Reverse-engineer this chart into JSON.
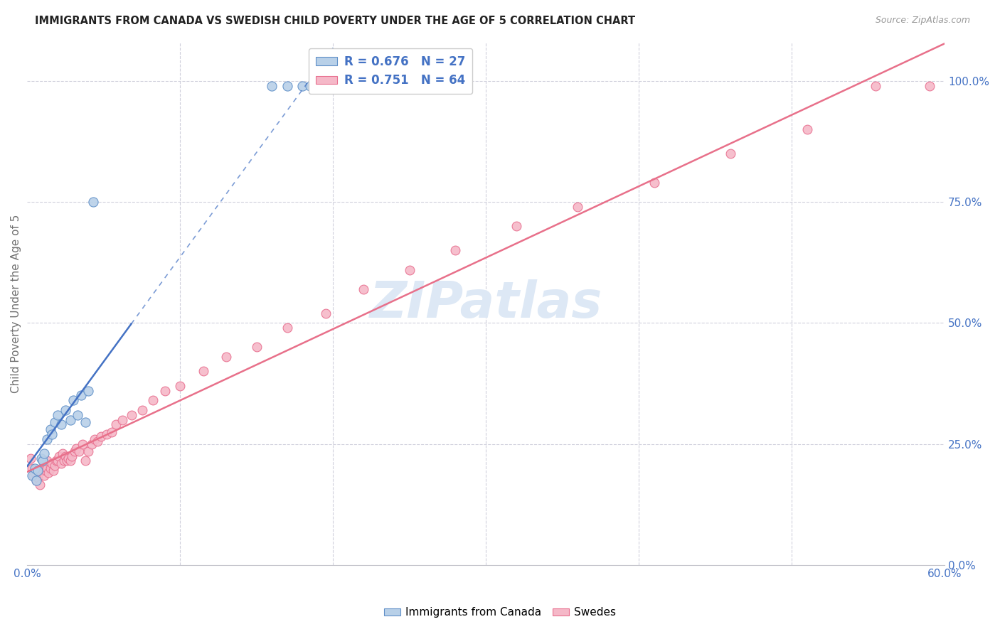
{
  "title": "IMMIGRANTS FROM CANADA VS SWEDISH CHILD POVERTY UNDER THE AGE OF 5 CORRELATION CHART",
  "source": "Source: ZipAtlas.com",
  "ylabel": "Child Poverty Under the Age of 5",
  "xlim": [
    0.0,
    0.6
  ],
  "ylim": [
    0.0,
    1.08
  ],
  "x_tick_positions": [
    0.0,
    0.1,
    0.2,
    0.3,
    0.4,
    0.5,
    0.6
  ],
  "x_tick_labels": [
    "0.0%",
    "",
    "",
    "",
    "",
    "",
    "60.0%"
  ],
  "y_tick_values_right": [
    0.0,
    0.25,
    0.5,
    0.75,
    1.0
  ],
  "y_tick_labels_right": [
    "0.0%",
    "25.0%",
    "50.0%",
    "75.0%",
    "100.0%"
  ],
  "legend_entries": [
    "R = 0.676   N = 27",
    "R = 0.751   N = 64"
  ],
  "legend_labels_bottom": [
    "Immigrants from Canada",
    "Swedes"
  ],
  "color_canada_fill": "#b8d0e8",
  "color_canada_edge": "#6090c8",
  "color_swedes_fill": "#f5b8c8",
  "color_swedes_edge": "#e87090",
  "color_canada_line": "#4472c4",
  "color_swedes_line": "#e8708a",
  "color_text_blue": "#4472c4",
  "color_grid": "#d0d0dc",
  "background_color": "#ffffff",
  "watermark_color": "#dde8f5",
  "canada_x": [
    0.003,
    0.005,
    0.006,
    0.007,
    0.009,
    0.01,
    0.011,
    0.013,
    0.015,
    0.016,
    0.018,
    0.02,
    0.022,
    0.025,
    0.028,
    0.03,
    0.033,
    0.035,
    0.038,
    0.04,
    0.043,
    0.16,
    0.17,
    0.18,
    0.185,
    0.195,
    0.205
  ],
  "canada_y": [
    0.185,
    0.2,
    0.175,
    0.195,
    0.22,
    0.215,
    0.23,
    0.26,
    0.28,
    0.27,
    0.295,
    0.31,
    0.29,
    0.32,
    0.3,
    0.34,
    0.31,
    0.35,
    0.295,
    0.36,
    0.75,
    0.99,
    0.99,
    0.99,
    0.99,
    0.99,
    0.99
  ],
  "swedes_x": [
    0.002,
    0.003,
    0.004,
    0.005,
    0.006,
    0.007,
    0.008,
    0.008,
    0.009,
    0.01,
    0.011,
    0.012,
    0.013,
    0.013,
    0.014,
    0.015,
    0.016,
    0.017,
    0.018,
    0.019,
    0.02,
    0.021,
    0.022,
    0.023,
    0.024,
    0.025,
    0.026,
    0.027,
    0.028,
    0.029,
    0.031,
    0.032,
    0.034,
    0.036,
    0.038,
    0.04,
    0.042,
    0.044,
    0.046,
    0.048,
    0.052,
    0.055,
    0.058,
    0.062,
    0.068,
    0.075,
    0.082,
    0.09,
    0.1,
    0.115,
    0.13,
    0.15,
    0.17,
    0.195,
    0.22,
    0.25,
    0.28,
    0.32,
    0.36,
    0.41,
    0.46,
    0.51,
    0.555,
    0.59
  ],
  "swedes_y": [
    0.22,
    0.2,
    0.185,
    0.19,
    0.175,
    0.18,
    0.165,
    0.195,
    0.2,
    0.195,
    0.185,
    0.195,
    0.2,
    0.215,
    0.19,
    0.2,
    0.21,
    0.195,
    0.205,
    0.215,
    0.215,
    0.225,
    0.21,
    0.23,
    0.215,
    0.225,
    0.215,
    0.22,
    0.215,
    0.225,
    0.235,
    0.24,
    0.235,
    0.25,
    0.215,
    0.235,
    0.25,
    0.26,
    0.255,
    0.265,
    0.27,
    0.275,
    0.29,
    0.3,
    0.31,
    0.32,
    0.34,
    0.36,
    0.37,
    0.4,
    0.43,
    0.45,
    0.49,
    0.52,
    0.57,
    0.61,
    0.65,
    0.7,
    0.74,
    0.79,
    0.85,
    0.9,
    0.99,
    0.99
  ]
}
